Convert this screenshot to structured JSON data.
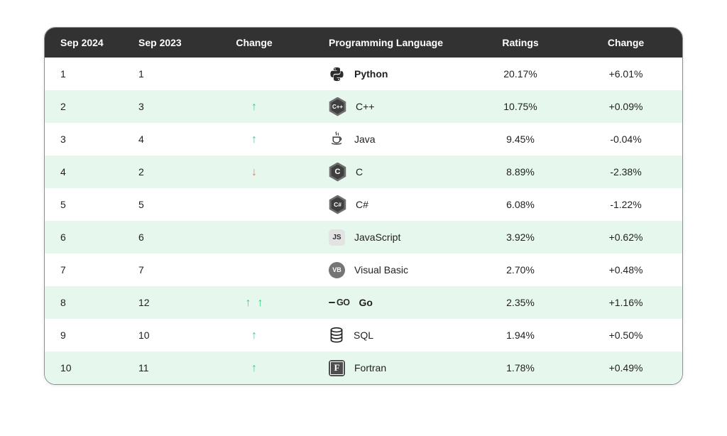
{
  "chart_data": {
    "type": "table",
    "columns": [
      "Sep 2024",
      "Sep 2023",
      "Change",
      "Programming Language",
      "Ratings",
      "Change"
    ],
    "rows": [
      [
        "1",
        "1",
        "",
        "Python",
        "20.17%",
        "+6.01%"
      ],
      [
        "2",
        "3",
        "up",
        "C++",
        "10.75%",
        "+0.09%"
      ],
      [
        "3",
        "4",
        "up",
        "Java",
        "9.45%",
        "-0.04%"
      ],
      [
        "4",
        "2",
        "down",
        "C",
        "8.89%",
        "-2.38%"
      ],
      [
        "5",
        "5",
        "",
        "C#",
        "6.08%",
        "-1.22%"
      ],
      [
        "6",
        "6",
        "",
        "JavaScript",
        "3.92%",
        "+0.62%"
      ],
      [
        "7",
        "7",
        "",
        "Visual Basic",
        "2.70%",
        "+0.48%"
      ],
      [
        "8",
        "12",
        "up up",
        "Go",
        "2.35%",
        "+1.16%"
      ],
      [
        "9",
        "10",
        "up",
        "SQL",
        "1.94%",
        "+0.50%"
      ],
      [
        "10",
        "11",
        "up",
        "Fortran",
        "1.78%",
        "+0.49%"
      ]
    ]
  },
  "table": {
    "headers": [
      "Sep 2024",
      "Sep 2023",
      "Change",
      "Programming Language",
      "Ratings",
      "Change"
    ],
    "rows": [
      {
        "rank_now": "1",
        "rank_prev": "1",
        "arrows": 0,
        "direction": "none",
        "language": "Python",
        "icon": "python-icon",
        "icon_label": "",
        "bold": true,
        "rating": "20.17%",
        "rating_change": "+6.01%"
      },
      {
        "rank_now": "2",
        "rank_prev": "3",
        "arrows": 1,
        "direction": "up",
        "language": "C++",
        "icon": "cpp-hexagon-icon",
        "icon_label": "C++",
        "bold": false,
        "rating": "10.75%",
        "rating_change": "+0.09%"
      },
      {
        "rank_now": "3",
        "rank_prev": "4",
        "arrows": 1,
        "direction": "up",
        "language": "Java",
        "icon": "java-cup-icon",
        "icon_label": "",
        "bold": false,
        "rating": "9.45%",
        "rating_change": "-0.04%"
      },
      {
        "rank_now": "4",
        "rank_prev": "2",
        "arrows": 1,
        "direction": "down",
        "language": "C",
        "icon": "c-hexagon-icon",
        "icon_label": "C",
        "bold": false,
        "rating": "8.89%",
        "rating_change": "-2.38%"
      },
      {
        "rank_now": "5",
        "rank_prev": "5",
        "arrows": 0,
        "direction": "none",
        "language": "C#",
        "icon": "csharp-hexagon-icon",
        "icon_label": "C#",
        "bold": false,
        "rating": "6.08%",
        "rating_change": "-1.22%"
      },
      {
        "rank_now": "6",
        "rank_prev": "6",
        "arrows": 0,
        "direction": "none",
        "language": "JavaScript",
        "icon": "js-square-icon",
        "icon_label": "JS",
        "bold": false,
        "rating": "3.92%",
        "rating_change": "+0.62%"
      },
      {
        "rank_now": "7",
        "rank_prev": "7",
        "arrows": 0,
        "direction": "none",
        "language": "Visual Basic",
        "icon": "vb-circle-icon",
        "icon_label": "VB",
        "bold": false,
        "rating": "2.70%",
        "rating_change": "+0.48%"
      },
      {
        "rank_now": "8",
        "rank_prev": "12",
        "arrows": 2,
        "direction": "up",
        "language": "Go",
        "icon": "go-logo-icon",
        "icon_label": "GO",
        "bold": true,
        "rating": "2.35%",
        "rating_change": "+1.16%"
      },
      {
        "rank_now": "9",
        "rank_prev": "10",
        "arrows": 1,
        "direction": "up",
        "language": "SQL",
        "icon": "sql-database-icon",
        "icon_label": "",
        "bold": false,
        "rating": "1.94%",
        "rating_change": "+0.50%"
      },
      {
        "rank_now": "10",
        "rank_prev": "11",
        "arrows": 1,
        "direction": "up",
        "language": "Fortran",
        "icon": "fortran-square-icon",
        "icon_label": "F",
        "bold": false,
        "rating": "1.78%",
        "rating_change": "+0.49%"
      }
    ]
  },
  "symbols": {
    "up": "↑",
    "down": "↓"
  },
  "colors": {
    "header_bg": "#323232",
    "header_text": "#ffffff",
    "row_bg": "#ffffff",
    "row_alt_bg": "#e6f8ed",
    "arrow_up": "#2fd57f",
    "arrow_down": "#f4756b",
    "text": "#1f1f1f",
    "card_border": "#8f8f8f"
  }
}
